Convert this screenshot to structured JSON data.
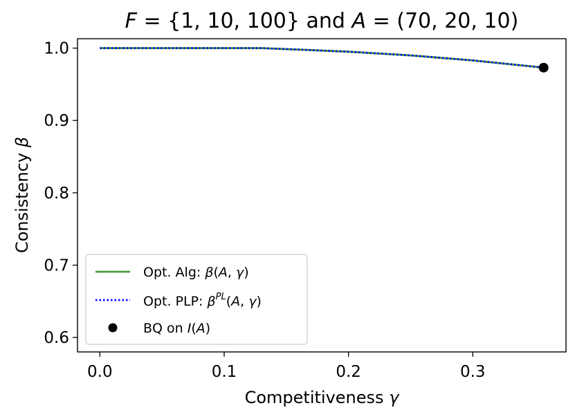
{
  "chart_data": {
    "type": "line",
    "title": "F = {1, 10, 100} and A = (70, 20, 10)",
    "title_parts": {
      "var_f": "F",
      "set_f": " = {1, 10, 100} ",
      "conj": "and ",
      "var_a": "A",
      "tuple_a": " = (70, 20, 10)"
    },
    "xlabel": "Competitiveness",
    "xlabel_symbol": "γ",
    "ylabel": "Consistency",
    "ylabel_symbol": "β",
    "xlim": [
      -0.018,
      0.375
    ],
    "ylim": [
      0.58,
      1.013
    ],
    "xticks": [
      0.0,
      0.1,
      0.2,
      0.3
    ],
    "xtick_labels": [
      "0.0",
      "0.1",
      "0.2",
      "0.3"
    ],
    "yticks": [
      0.6,
      0.7,
      0.8,
      0.9,
      1.0
    ],
    "ytick_labels": [
      "0.6",
      "0.7",
      "0.8",
      "0.9",
      "1.0"
    ],
    "grid": false,
    "legend_position": "lower-left",
    "series": [
      {
        "name": "Opt. Alg: β(A, γ)",
        "style": "solid",
        "color": "#4a9a3f",
        "x": [
          0.0,
          0.05,
          0.1,
          0.13,
          0.16,
          0.2,
          0.25,
          0.3,
          0.357
        ],
        "y": [
          1.0,
          1.0,
          1.0,
          1.0,
          0.998,
          0.995,
          0.99,
          0.983,
          0.973
        ]
      },
      {
        "name": "Opt. PLP: β^PL(A, γ)",
        "style": "dotted",
        "color": "#0000ff",
        "x": [
          0.0,
          0.05,
          0.1,
          0.13,
          0.16,
          0.2,
          0.25,
          0.3,
          0.357
        ],
        "y": [
          1.0,
          1.0,
          1.0,
          1.0,
          0.998,
          0.995,
          0.99,
          0.983,
          0.973
        ]
      }
    ],
    "points": [
      {
        "name": "BQ on I(A)",
        "color": "#000000",
        "x": 0.357,
        "y": 0.973
      }
    ],
    "legend": [
      {
        "prefix": "Opt. Alg: ",
        "base": "β",
        "sup": "",
        "args_open": "(",
        "a": "A",
        "sep": ", ",
        "g": "γ",
        "args_close": ")"
      },
      {
        "prefix": "Opt. PLP: ",
        "base": "β",
        "sup": "PL",
        "args_open": "(",
        "a": "A",
        "sep": ", ",
        "g": "γ",
        "args_close": ")"
      },
      {
        "prefix": "BQ on ",
        "func": "I",
        "open": "(",
        "a": "A",
        "close": ")"
      }
    ]
  }
}
